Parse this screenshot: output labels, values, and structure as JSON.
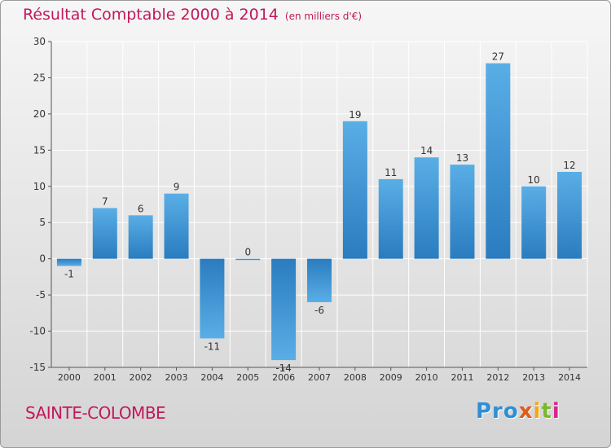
{
  "header": {
    "title": "Résultat Comptable 2000 à 2014",
    "subtitle": "(en milliers d'€)"
  },
  "footer": {
    "commune": "SAINTE-COLOMBE",
    "logo_parts": [
      "Pro",
      "x",
      "i",
      "t",
      "i"
    ]
  },
  "colors": {
    "title": "#c2185b",
    "bar_light": "#5aaee6",
    "bar_dark": "#2a7cbf",
    "grid": "#ffffff",
    "axis": "#555555"
  },
  "chart_data": {
    "type": "bar",
    "title": "Résultat Comptable 2000 à 2014",
    "ylabel": "en milliers d'€",
    "xlabel": "",
    "categories": [
      "2000",
      "2001",
      "2002",
      "2003",
      "2004",
      "2005",
      "2006",
      "2007",
      "2008",
      "2009",
      "2010",
      "2011",
      "2012",
      "2013",
      "2014"
    ],
    "values": [
      -1,
      7,
      6,
      9,
      -11,
      0,
      -14,
      -6,
      19,
      11,
      14,
      13,
      27,
      10,
      12
    ],
    "ylim": [
      -15,
      30
    ],
    "yticks": [
      -15,
      -10,
      -5,
      0,
      5,
      10,
      15,
      20,
      25,
      30
    ],
    "grid": true
  }
}
